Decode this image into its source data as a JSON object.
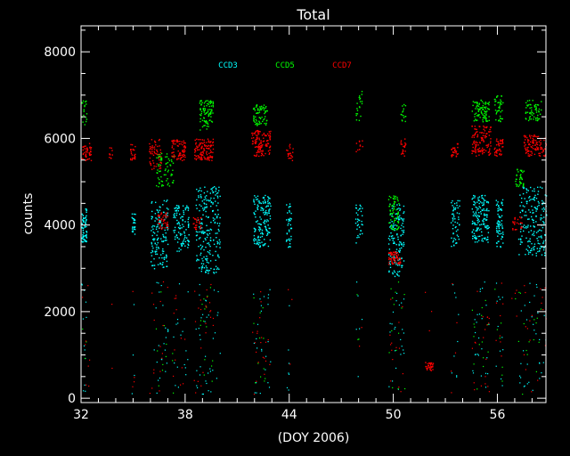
{
  "chart_data": {
    "type": "scatter",
    "title": "Total",
    "xlabel": "(DOY 2006)",
    "ylabel": "counts",
    "xlim": [
      32,
      58.8
    ],
    "ylim": [
      -100,
      8600
    ],
    "xticks": [
      32,
      38,
      44,
      50,
      56
    ],
    "yticks": [
      0,
      2000,
      4000,
      6000,
      8000
    ],
    "grid": false,
    "legend_placement": "top-center",
    "background": "#000000",
    "series": [
      {
        "name": "CCD3",
        "color": "#00ffff",
        "clusters": [
          {
            "x": [
              32.0,
              32.3
            ],
            "y": [
              3600,
              4400
            ],
            "n": 70
          },
          {
            "x": [
              34.9,
              35.1
            ],
            "y": [
              3800,
              4300
            ],
            "n": 25
          },
          {
            "x": [
              36.0,
              37.0
            ],
            "y": [
              3000,
              4600
            ],
            "n": 140
          },
          {
            "x": [
              37.3,
              38.2
            ],
            "y": [
              3400,
              4500
            ],
            "n": 110
          },
          {
            "x": [
              38.6,
              40.0
            ],
            "y": [
              2900,
              4900
            ],
            "n": 220
          },
          {
            "x": [
              41.9,
              42.9
            ],
            "y": [
              3500,
              4700
            ],
            "n": 150
          },
          {
            "x": [
              43.8,
              44.1
            ],
            "y": [
              3500,
              4500
            ],
            "n": 40
          },
          {
            "x": [
              47.8,
              48.2
            ],
            "y": [
              3600,
              4500
            ],
            "n": 35
          },
          {
            "x": [
              49.7,
              50.6
            ],
            "y": [
              2800,
              4500
            ],
            "n": 140
          },
          {
            "x": [
              53.3,
              53.8
            ],
            "y": [
              3500,
              4600
            ],
            "n": 55
          },
          {
            "x": [
              54.5,
              55.5
            ],
            "y": [
              3600,
              4700
            ],
            "n": 150
          },
          {
            "x": [
              55.9,
              56.3
            ],
            "y": [
              3500,
              4600
            ],
            "n": 70
          },
          {
            "x": [
              57.2,
              58.8
            ],
            "y": [
              3300,
              4900
            ],
            "n": 190
          }
        ]
      },
      {
        "name": "CCD5",
        "color": "#00ff00",
        "clusters": [
          {
            "x": [
              32.0,
              32.3
            ],
            "y": [
              6300,
              6900
            ],
            "n": 20
          },
          {
            "x": [
              36.3,
              37.3
            ],
            "y": [
              4900,
              5700
            ],
            "n": 70
          },
          {
            "x": [
              38.8,
              39.6
            ],
            "y": [
              6200,
              6900
            ],
            "n": 90
          },
          {
            "x": [
              41.9,
              42.7
            ],
            "y": [
              6300,
              6800
            ],
            "n": 70
          },
          {
            "x": [
              47.8,
              48.2
            ],
            "y": [
              6400,
              7100
            ],
            "n": 20
          },
          {
            "x": [
              49.7,
              50.3
            ],
            "y": [
              3900,
              4700
            ],
            "n": 65
          },
          {
            "x": [
              50.4,
              50.7
            ],
            "y": [
              6400,
              6800
            ],
            "n": 15
          },
          {
            "x": [
              54.5,
              55.5
            ],
            "y": [
              6400,
              6900
            ],
            "n": 90
          },
          {
            "x": [
              55.8,
              56.3
            ],
            "y": [
              6400,
              7000
            ],
            "n": 40
          },
          {
            "x": [
              57.0,
              57.5
            ],
            "y": [
              4900,
              5300
            ],
            "n": 35
          },
          {
            "x": [
              57.6,
              58.5
            ],
            "y": [
              6400,
              6900
            ],
            "n": 60
          }
        ]
      },
      {
        "name": "CCD7",
        "color": "#ff0000",
        "clusters": [
          {
            "x": [
              32.0,
              32.6
            ],
            "y": [
              5500,
              5900
            ],
            "n": 45
          },
          {
            "x": [
              33.6,
              33.8
            ],
            "y": [
              5500,
              5800
            ],
            "n": 10
          },
          {
            "x": [
              34.8,
              35.1
            ],
            "y": [
              5500,
              5900
            ],
            "n": 25
          },
          {
            "x": [
              35.9,
              36.6
            ],
            "y": [
              5300,
              6000
            ],
            "n": 55
          },
          {
            "x": [
              37.2,
              38.0
            ],
            "y": [
              5500,
              6000
            ],
            "n": 75
          },
          {
            "x": [
              36.4,
              37.0
            ],
            "y": [
              3900,
              4300
            ],
            "n": 40
          },
          {
            "x": [
              38.5,
              39.6
            ],
            "y": [
              5500,
              6000
            ],
            "n": 120
          },
          {
            "x": [
              38.4,
              38.9
            ],
            "y": [
              3900,
              4200
            ],
            "n": 25
          },
          {
            "x": [
              41.8,
              42.9
            ],
            "y": [
              5600,
              6200
            ],
            "n": 120
          },
          {
            "x": [
              43.8,
              44.2
            ],
            "y": [
              5500,
              5900
            ],
            "n": 20
          },
          {
            "x": [
              47.8,
              48.2
            ],
            "y": [
              5700,
              6000
            ],
            "n": 10
          },
          {
            "x": [
              49.7,
              50.4
            ],
            "y": [
              3100,
              3400
            ],
            "n": 65
          },
          {
            "x": [
              50.4,
              50.7
            ],
            "y": [
              5600,
              6000
            ],
            "n": 20
          },
          {
            "x": [
              51.8,
              52.3
            ],
            "y": [
              650,
              850
            ],
            "n": 30
          },
          {
            "x": [
              53.3,
              53.7
            ],
            "y": [
              5500,
              5900
            ],
            "n": 30
          },
          {
            "x": [
              54.5,
              55.6
            ],
            "y": [
              5600,
              6300
            ],
            "n": 120
          },
          {
            "x": [
              55.8,
              56.3
            ],
            "y": [
              5600,
              6000
            ],
            "n": 45
          },
          {
            "x": [
              56.8,
              57.4
            ],
            "y": [
              3900,
              4200
            ],
            "n": 25
          },
          {
            "x": [
              57.5,
              58.8
            ],
            "y": [
              5600,
              6100
            ],
            "n": 110
          }
        ]
      }
    ]
  }
}
